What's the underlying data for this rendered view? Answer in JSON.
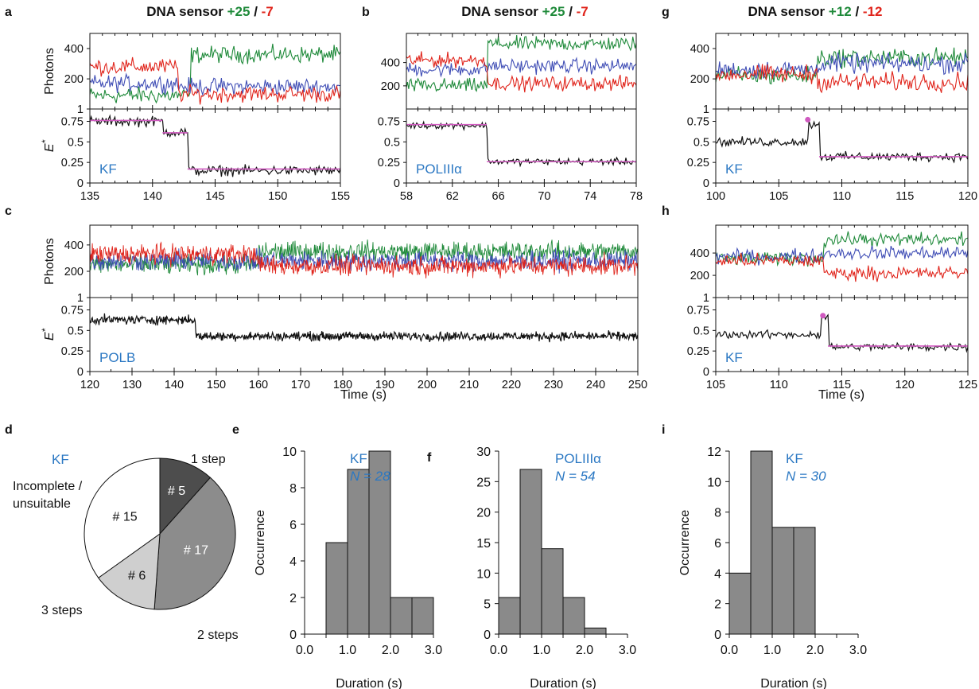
{
  "colors": {
    "green": "#1f8a3a",
    "red": "#e0241b",
    "blue": "#3f4db5",
    "black": "#111111",
    "magenta": "#d05ac0",
    "label_blue": "#2b78c3",
    "pie_dark": "#4d4d4d",
    "pie_mid": "#8c8c8c",
    "pie_light": "#cfcfcf",
    "pie_white": "#ffffff",
    "bar": "#8a8a8a"
  },
  "panels": {
    "a": {
      "letter": "a",
      "title_prefix": "DNA sensor",
      "title_pos": "+25",
      "title_sep": " / ",
      "title_neg": "-7",
      "label": "KF"
    },
    "b": {
      "letter": "b",
      "title_prefix": "DNA sensor",
      "title_pos": "+25",
      "title_sep": " / ",
      "title_neg": "-7",
      "label": "POLIIIα"
    },
    "c": {
      "letter": "c",
      "label": "POLB"
    },
    "g": {
      "letter": "g",
      "title_prefix": "DNA sensor",
      "title_pos": "+12",
      "title_sep": " / ",
      "title_neg": "-12",
      "label": "KF"
    },
    "h": {
      "letter": "h",
      "label": "KF"
    },
    "d": {
      "letter": "d",
      "label": "KF"
    },
    "e": {
      "letter": "e",
      "label": "KF",
      "n_label": "N = 28"
    },
    "f": {
      "letter": "f",
      "label": "POLIIIα",
      "n_label": "N = 54"
    },
    "i": {
      "letter": "i",
      "label": "KF",
      "n_label": "N = 30"
    }
  },
  "axis_labels": {
    "photons": "Photons",
    "estar": "E",
    "estar_sup": "*",
    "time": "Time (s)",
    "occurrence": "Occurrence",
    "duration": "Duration (s)"
  },
  "chart_data": [
    {
      "panel": "a",
      "type": "line",
      "xlim": [
        135,
        155
      ],
      "xticks": [
        "135",
        "140",
        "145",
        "150",
        "155"
      ],
      "photon_ylim": [
        1,
        500
      ],
      "photon_yticks": [
        "1",
        "200",
        "400"
      ],
      "estar_ylim": [
        0,
        0.9
      ],
      "estar_yticks": [
        "0",
        "0.25",
        "0.5",
        "0.75"
      ],
      "series": [
        {
          "name": "green",
          "segments": [
            [
              135,
              143,
              90
            ],
            [
              143,
              155,
              360
            ]
          ]
        },
        {
          "name": "red",
          "segments": [
            [
              135,
              142,
              280
            ],
            [
              142,
              155,
              100
            ]
          ]
        },
        {
          "name": "blue",
          "segments": [
            [
              135,
              142,
              170
            ],
            [
              142,
              155,
              150
            ]
          ]
        },
        {
          "name": "E*",
          "segments": [
            [
              135,
              140.8,
              0.75
            ],
            [
              140.8,
              142.8,
              0.62
            ],
            [
              142.8,
              155,
              0.15
            ]
          ]
        }
      ],
      "fit": [
        [
          135,
          140.8,
          0.76
        ],
        [
          140.8,
          142.8,
          0.61
        ],
        [
          142.8,
          155,
          0.17
        ]
      ]
    },
    {
      "panel": "b",
      "type": "line",
      "xlim": [
        58,
        78
      ],
      "xticks": [
        "58",
        "62",
        "66",
        "70",
        "74",
        "78"
      ],
      "photon_ylim": [
        1,
        650
      ],
      "photon_yticks": [
        "200",
        "400"
      ],
      "estar_ylim": [
        0,
        0.9
      ],
      "estar_yticks": [
        "0",
        "0.25",
        "0.5",
        "0.75"
      ],
      "series": [
        {
          "name": "green",
          "segments": [
            [
              58,
              65,
              200
            ],
            [
              65,
              78,
              560
            ]
          ]
        },
        {
          "name": "red",
          "segments": [
            [
              58,
              65,
              420
            ],
            [
              65,
              78,
              220
            ]
          ]
        },
        {
          "name": "blue",
          "segments": [
            [
              58,
              65,
              340
            ],
            [
              65,
              78,
              370
            ]
          ]
        },
        {
          "name": "E*",
          "segments": [
            [
              58,
              65,
              0.7
            ],
            [
              65,
              78,
              0.26
            ]
          ]
        }
      ],
      "fit": [
        [
          58,
          65,
          0.71
        ],
        [
          65,
          78,
          0.26
        ]
      ]
    },
    {
      "panel": "g",
      "type": "line",
      "xlim": [
        100,
        120
      ],
      "xticks": [
        "100",
        "105",
        "110",
        "115",
        "120"
      ],
      "photon_ylim": [
        1,
        500
      ],
      "photon_yticks": [
        "1",
        "200",
        "400"
      ],
      "estar_ylim": [
        0,
        0.9
      ],
      "estar_yticks": [
        "0",
        "0.25",
        "0.5",
        "0.75"
      ],
      "series": [
        {
          "name": "green",
          "segments": [
            [
              100,
              108,
              220
            ],
            [
              108,
              120,
              340
            ]
          ]
        },
        {
          "name": "red",
          "segments": [
            [
              100,
              108,
              230
            ],
            [
              108,
              120,
              180
            ]
          ]
        },
        {
          "name": "blue",
          "segments": [
            [
              100,
              108,
              260
            ],
            [
              108,
              120,
              300
            ]
          ]
        },
        {
          "name": "E*",
          "segments": [
            [
              100,
              107.3,
              0.5
            ],
            [
              107.3,
              108.2,
              0.72
            ],
            [
              108.2,
              120,
              0.32
            ]
          ]
        }
      ],
      "fit": [
        [
          108.2,
          120,
          0.32
        ]
      ],
      "marker": [
        107.3,
        0.77
      ]
    },
    {
      "panel": "c",
      "type": "line",
      "xlim": [
        120,
        250
      ],
      "xticks": [
        "120",
        "130",
        "140",
        "150",
        "160",
        "170",
        "180",
        "190",
        "200",
        "210",
        "220",
        "230",
        "240",
        "250"
      ],
      "photon_ylim": [
        1,
        550
      ],
      "photon_yticks": [
        "1",
        "200",
        "400"
      ],
      "estar_ylim": [
        0,
        0.9
      ],
      "estar_yticks": [
        "0",
        "0.25",
        "0.5",
        "0.75"
      ],
      "series": [
        {
          "name": "green",
          "segments": [
            [
              120,
              160,
              250
            ],
            [
              160,
              250,
              350
            ]
          ]
        },
        {
          "name": "blue",
          "segments": [
            [
              120,
              250,
              280
            ]
          ]
        },
        {
          "name": "red",
          "segments": [
            [
              120,
              160,
              330
            ],
            [
              160,
              250,
              240
            ]
          ]
        },
        {
          "name": "E*",
          "segments": [
            [
              120,
              145,
              0.63
            ],
            [
              145,
              250,
              0.43
            ]
          ]
        }
      ]
    },
    {
      "panel": "h",
      "type": "line",
      "xlim": [
        105,
        125
      ],
      "xticks": [
        "105",
        "110",
        "115",
        "120",
        "125"
      ],
      "photon_ylim": [
        1,
        650
      ],
      "photon_yticks": [
        "1",
        "200",
        "400"
      ],
      "estar_ylim": [
        0,
        0.9
      ],
      "estar_yticks": [
        "0",
        "0.25",
        "0.5",
        "0.75"
      ],
      "series": [
        {
          "name": "green",
          "segments": [
            [
              105,
              113.5,
              350
            ],
            [
              113.5,
              125,
              520
            ]
          ]
        },
        {
          "name": "red",
          "segments": [
            [
              105,
              113.5,
              330
            ],
            [
              113.5,
              125,
              220
            ]
          ]
        },
        {
          "name": "blue",
          "segments": [
            [
              105,
              113.5,
              370
            ],
            [
              113.5,
              125,
              400
            ]
          ]
        },
        {
          "name": "E*",
          "segments": [
            [
              105,
              113.3,
              0.45
            ],
            [
              113.3,
              113.9,
              0.66
            ],
            [
              113.9,
              125,
              0.3
            ]
          ]
        }
      ],
      "fit": [
        [
          113.9,
          125,
          0.31
        ]
      ],
      "marker": [
        113.5,
        0.68
      ]
    },
    {
      "panel": "d",
      "type": "pie",
      "slices": [
        {
          "label": "1 step",
          "value": 5,
          "text": "# 5",
          "color": "pie_dark",
          "text_color": "#ffffff"
        },
        {
          "label": "2 steps",
          "value": 17,
          "text": "# 17",
          "color": "pie_mid",
          "text_color": "#ffffff"
        },
        {
          "label": "3 steps",
          "value": 6,
          "text": "# 6",
          "color": "pie_light",
          "text_color": "#111111"
        },
        {
          "label": "Incomplete / unsuitable",
          "value": 15,
          "text": "# 15",
          "color": "pie_white",
          "text_color": "#111111"
        }
      ],
      "outer_labels": [
        "1 step",
        "2 steps",
        "3 steps",
        "Incomplete /",
        "unsuitable"
      ]
    },
    {
      "panel": "e",
      "type": "bar",
      "xlim": [
        0,
        3
      ],
      "ylim": [
        0,
        10
      ],
      "xticks": [
        "0.0",
        "1.0",
        "2.0",
        "3.0"
      ],
      "yticks": [
        "0",
        "2",
        "4",
        "6",
        "8",
        "10"
      ],
      "bins": [
        [
          0.5,
          1.0,
          5
        ],
        [
          1.0,
          1.5,
          9
        ],
        [
          1.5,
          2.0,
          10
        ],
        [
          2.0,
          2.5,
          2
        ],
        [
          2.5,
          3.0,
          2
        ]
      ]
    },
    {
      "panel": "f",
      "type": "bar",
      "xlim": [
        0,
        3
      ],
      "ylim": [
        0,
        30
      ],
      "xticks": [
        "0.0",
        "1.0",
        "2.0",
        "3.0"
      ],
      "yticks": [
        "0",
        "5",
        "10",
        "15",
        "20",
        "25",
        "30"
      ],
      "bins": [
        [
          0,
          0.5,
          6
        ],
        [
          0.5,
          1.0,
          27
        ],
        [
          1.0,
          1.5,
          14
        ],
        [
          1.5,
          2.0,
          6
        ],
        [
          2.0,
          2.5,
          1
        ]
      ]
    },
    {
      "panel": "i",
      "type": "bar",
      "xlim": [
        0,
        3
      ],
      "ylim": [
        0,
        12
      ],
      "xticks": [
        "0.0",
        "1.0",
        "2.0",
        "3.0"
      ],
      "yticks": [
        "0",
        "2",
        "4",
        "6",
        "8",
        "10",
        "12"
      ],
      "bins": [
        [
          0,
          0.5,
          4
        ],
        [
          0.5,
          1.0,
          12
        ],
        [
          1.0,
          1.5,
          7
        ],
        [
          1.5,
          2.0,
          7
        ]
      ]
    }
  ]
}
